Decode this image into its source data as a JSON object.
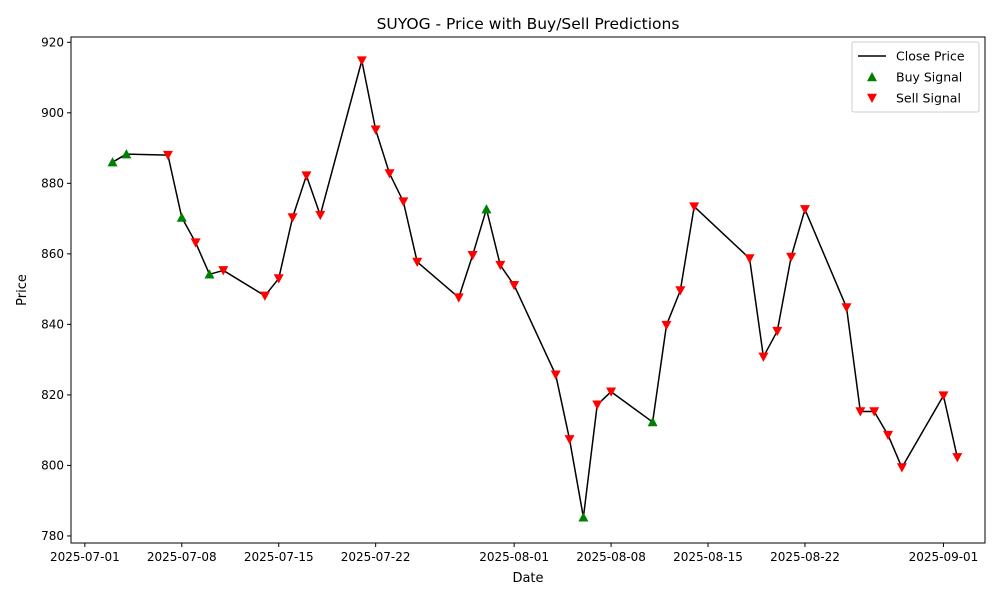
{
  "chart_data": {
    "type": "line",
    "title": "SUYOG - Price with Buy/Sell Predictions",
    "xlabel": "Date",
    "ylabel": "Price",
    "xlim": [
      "2025-06-30",
      "2025-09-04"
    ],
    "ylim": [
      778,
      921.5
    ],
    "x_ticks": [
      "2025-07-01",
      "2025-07-08",
      "2025-07-15",
      "2025-07-22",
      "2025-08-01",
      "2025-08-08",
      "2025-08-15",
      "2025-08-22",
      "2025-09-01"
    ],
    "y_ticks": [
      780,
      800,
      820,
      840,
      860,
      880,
      900,
      920
    ],
    "legend_position": "upper-right",
    "series": [
      {
        "name": "Close Price",
        "color": "#000000",
        "points": [
          {
            "x": "2025-07-03",
            "y": 886.0,
            "signal": "buy"
          },
          {
            "x": "2025-07-04",
            "y": 888.3,
            "signal": "buy"
          },
          {
            "x": "2025-07-07",
            "y": 888.0,
            "signal": "sell"
          },
          {
            "x": "2025-07-08",
            "y": 870.3,
            "signal": "buy"
          },
          {
            "x": "2025-07-09",
            "y": 863.2,
            "signal": "sell"
          },
          {
            "x": "2025-07-10",
            "y": 854.2,
            "signal": "buy"
          },
          {
            "x": "2025-07-11",
            "y": 855.3,
            "signal": "sell"
          },
          {
            "x": "2025-07-14",
            "y": 848.1,
            "signal": "sell"
          },
          {
            "x": "2025-07-15",
            "y": 853.0,
            "signal": "sell"
          },
          {
            "x": "2025-07-16",
            "y": 870.3,
            "signal": "sell"
          },
          {
            "x": "2025-07-17",
            "y": 882.2,
            "signal": "sell"
          },
          {
            "x": "2025-07-18",
            "y": 871.0,
            "signal": "sell"
          },
          {
            "x": "2025-07-21",
            "y": 914.8,
            "signal": "sell"
          },
          {
            "x": "2025-07-22",
            "y": 895.2,
            "signal": "sell"
          },
          {
            "x": "2025-07-23",
            "y": 882.8,
            "signal": "sell"
          },
          {
            "x": "2025-07-24",
            "y": 874.8,
            "signal": "sell"
          },
          {
            "x": "2025-07-25",
            "y": 857.7,
            "signal": "sell"
          },
          {
            "x": "2025-07-28",
            "y": 847.6,
            "signal": "sell"
          },
          {
            "x": "2025-07-29",
            "y": 859.6,
            "signal": "sell"
          },
          {
            "x": "2025-07-30",
            "y": 872.7,
            "signal": "buy"
          },
          {
            "x": "2025-07-31",
            "y": 856.8,
            "signal": "sell"
          },
          {
            "x": "2025-08-01",
            "y": 851.1,
            "signal": "sell"
          },
          {
            "x": "2025-08-04",
            "y": 825.7,
            "signal": "sell"
          },
          {
            "x": "2025-08-05",
            "y": 807.4,
            "signal": "sell"
          },
          {
            "x": "2025-08-06",
            "y": 785.3,
            "signal": "buy"
          },
          {
            "x": "2025-08-07",
            "y": 817.2,
            "signal": "sell"
          },
          {
            "x": "2025-08-08",
            "y": 820.9,
            "signal": "sell"
          },
          {
            "x": "2025-08-11",
            "y": 812.3,
            "signal": "buy"
          },
          {
            "x": "2025-08-12",
            "y": 839.8,
            "signal": "sell"
          },
          {
            "x": "2025-08-13",
            "y": 849.6,
            "signal": "sell"
          },
          {
            "x": "2025-08-14",
            "y": 873.4,
            "signal": "sell"
          },
          {
            "x": "2025-08-18",
            "y": 858.7,
            "signal": "sell"
          },
          {
            "x": "2025-08-19",
            "y": 830.8,
            "signal": "sell"
          },
          {
            "x": "2025-08-20",
            "y": 838.1,
            "signal": "sell"
          },
          {
            "x": "2025-08-21",
            "y": 859.1,
            "signal": "sell"
          },
          {
            "x": "2025-08-22",
            "y": 872.6,
            "signal": "sell"
          },
          {
            "x": "2025-08-25",
            "y": 844.8,
            "signal": "sell"
          },
          {
            "x": "2025-08-26",
            "y": 815.3,
            "signal": "sell"
          },
          {
            "x": "2025-08-27",
            "y": 815.3,
            "signal": "sell"
          },
          {
            "x": "2025-08-28",
            "y": 808.6,
            "signal": "sell"
          },
          {
            "x": "2025-08-29",
            "y": 799.4,
            "signal": "sell"
          },
          {
            "x": "2025-09-01",
            "y": 819.8,
            "signal": "sell"
          },
          {
            "x": "2025-09-02",
            "y": 802.3,
            "signal": "sell"
          }
        ]
      }
    ],
    "legend": [
      {
        "label": "Close Price",
        "kind": "line",
        "color": "#000000"
      },
      {
        "label": "Buy Signal",
        "kind": "triangle-up",
        "color": "#008000"
      },
      {
        "label": "Sell Signal",
        "kind": "triangle-down",
        "color": "#ff0000"
      }
    ]
  }
}
